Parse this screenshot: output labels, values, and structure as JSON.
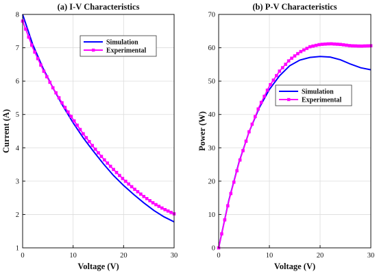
{
  "colors": {
    "simulation": "#0000ff",
    "experimental": "#ff00ff",
    "grid": "#dcdcdc",
    "axis": "#111111"
  },
  "chart_data": [
    {
      "type": "line",
      "title": "(a) I-V Characteristics",
      "xlabel": "Voltage (V)",
      "ylabel": "Current (A)",
      "xlim": [
        0,
        30
      ],
      "ylim": [
        1,
        8
      ],
      "xticks": [
        0,
        10,
        20,
        30
      ],
      "yticks": [
        1,
        2,
        3,
        4,
        5,
        6,
        7,
        8
      ],
      "grid": true,
      "legend": "top-right",
      "series": [
        {
          "name": "Simulation",
          "x": [
            0,
            2,
            4,
            6,
            8,
            10,
            12,
            14,
            16,
            18,
            20,
            22,
            24,
            26,
            28,
            30
          ],
          "y": [
            8.0,
            7.1,
            6.4,
            5.8,
            5.25,
            4.75,
            4.3,
            3.9,
            3.52,
            3.17,
            2.87,
            2.6,
            2.35,
            2.12,
            1.93,
            1.78
          ]
        },
        {
          "name": "Experimental",
          "x": [
            0,
            2,
            4,
            6,
            8,
            10,
            12,
            14,
            16,
            18,
            20,
            22,
            24,
            26,
            28,
            30
          ],
          "y": [
            7.8,
            7.0,
            6.35,
            5.8,
            5.3,
            4.85,
            4.42,
            4.03,
            3.67,
            3.35,
            3.05,
            2.78,
            2.54,
            2.33,
            2.16,
            2.02
          ]
        }
      ]
    },
    {
      "type": "line",
      "title": "(b) P-V Characteristics",
      "xlabel": "Voltage (V)",
      "ylabel": "Power (W)",
      "xlim": [
        0,
        30
      ],
      "ylim": [
        0,
        70
      ],
      "xticks": [
        0,
        10,
        20,
        30
      ],
      "yticks": [
        0,
        10,
        20,
        30,
        40,
        50,
        60,
        70
      ],
      "grid": true,
      "legend": "right",
      "series": [
        {
          "name": "Simulation",
          "x": [
            0,
            2,
            4,
            6,
            8,
            10,
            12,
            14,
            16,
            18,
            20,
            22,
            24,
            26,
            28,
            30
          ],
          "y": [
            0,
            14.2,
            25.6,
            34.8,
            42.0,
            47.5,
            51.6,
            54.6,
            56.3,
            57.1,
            57.4,
            57.2,
            56.4,
            55.1,
            54.0,
            53.4
          ]
        },
        {
          "name": "Experimental",
          "x": [
            0,
            2,
            4,
            6,
            8,
            10,
            12,
            14,
            16,
            18,
            20,
            22,
            24,
            26,
            28,
            30
          ],
          "y": [
            0,
            14.0,
            25.4,
            34.8,
            42.4,
            48.5,
            53.0,
            56.4,
            58.7,
            60.3,
            61.0,
            61.2,
            61.0,
            60.6,
            60.5,
            60.6
          ]
        }
      ]
    }
  ]
}
